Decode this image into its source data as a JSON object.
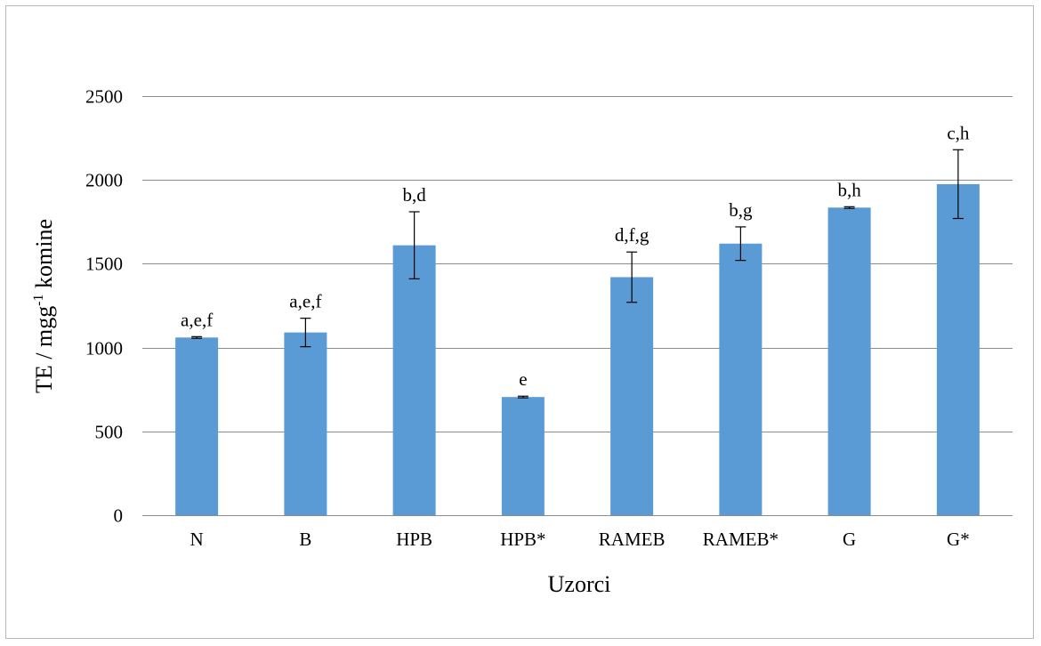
{
  "chart_data": {
    "type": "bar",
    "categories": [
      "N",
      "B",
      "HPB",
      "HPB*",
      "RAMEB",
      "RAMEB*",
      "G",
      "G*"
    ],
    "values": [
      1060,
      1090,
      1610,
      705,
      1420,
      1620,
      1835,
      1975
    ],
    "error": [
      5,
      85,
      200,
      5,
      150,
      100,
      5,
      205
    ],
    "labels": [
      "a,e,f",
      "a,e,f",
      "b,d",
      "e",
      "d,f,g",
      "b,g",
      "b,h",
      "c,h"
    ],
    "xlabel": "Uzorci",
    "ylabel": {
      "prefix": "TE / mgg",
      "superscript": "-1",
      "suffix": " komine"
    },
    "ylim": [
      0,
      2500
    ],
    "yticks": [
      0,
      500,
      1000,
      1500,
      2000,
      2500
    ],
    "grid": true,
    "bar_color": "#5b9bd5",
    "gridline_color": "#8c8c8c",
    "errorbar_color": "#000000"
  }
}
